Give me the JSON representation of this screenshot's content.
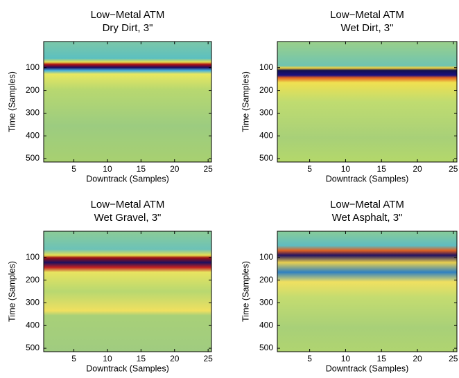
{
  "chart_data": [
    {
      "type": "heatmap",
      "title": "Low−Metal ATM",
      "subtitle": "Dry Dirt, 3\"",
      "xlabel": "Downtrack (Samples)",
      "ylabel": "Time (Samples)",
      "xlim": [
        0.5,
        25.5
      ],
      "ylim": [
        -15,
        515
      ],
      "xticks": [
        5,
        10,
        15,
        20,
        25
      ],
      "yticks": [
        100,
        200,
        300,
        400,
        500
      ]
    },
    {
      "type": "heatmap",
      "title": "Low−Metal ATM",
      "subtitle": "Wet Dirt, 3\"",
      "xlabel": "Downtrack (Samples)",
      "ylabel": "Time (Samples)",
      "xlim": [
        0.5,
        25.5
      ],
      "ylim": [
        -15,
        515
      ],
      "xticks": [
        5,
        10,
        15,
        20,
        25
      ],
      "yticks": [
        100,
        200,
        300,
        400,
        500
      ]
    },
    {
      "type": "heatmap",
      "title": "Low−Metal ATM",
      "subtitle": "Wet Gravel, 3\"",
      "xlabel": "Downtrack (Samples)",
      "ylabel": "Time (Samples)",
      "xlim": [
        0.5,
        25.5
      ],
      "ylim": [
        -15,
        515
      ],
      "xticks": [
        5,
        10,
        15,
        20,
        25
      ],
      "yticks": [
        100,
        200,
        300,
        400,
        500
      ]
    },
    {
      "type": "heatmap",
      "title": "Low−Metal ATM",
      "subtitle": "Wet Asphalt, 3\"",
      "xlabel": "Downtrack (Samples)",
      "ylabel": "Time (Samples)",
      "xlim": [
        0.5,
        25.5
      ],
      "ylim": [
        -15,
        515
      ],
      "xticks": [
        5,
        10,
        15,
        20,
        25
      ],
      "yticks": [
        100,
        200,
        300,
        400,
        500
      ]
    }
  ]
}
